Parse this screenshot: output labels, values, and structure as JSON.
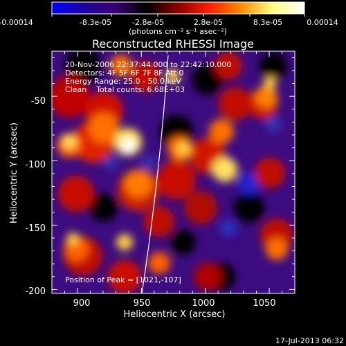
{
  "colorbar": {
    "tick_labels": [
      "-0.00014",
      "-8.3e-05",
      "-2.8e-05",
      "2.8e-05",
      "8.3e-05",
      "0.00014"
    ],
    "unit_label": "(photons cm⁻² s⁻¹ asec⁻²)",
    "colors": [
      "#0000ff",
      "#1e00a0",
      "#3a0070",
      "#000000",
      "#8c0000",
      "#ff2000",
      "#ff8c00",
      "#ffff80",
      "#ffffff"
    ]
  },
  "image": {
    "title": "Reconstructed RHESSI Image",
    "info_lines": [
      "20-Nov-2006 22:37:44.000 to 22:42:10.000",
      "Detectors: 4F 5F 6F 7F 8F  Att 0",
      "Energy Range: 25.0 - 50.0 keV",
      "Clean    Total counts: 6.68E+03"
    ],
    "peak_label": "Position of Peak = [1021,-107]",
    "xlabel": "Heliocentric X (arcsec)",
    "ylabel": "Heliocentric Y (arcsec)",
    "x_ticks": [
      "900",
      "950",
      "1000",
      "1050"
    ],
    "y_ticks": [
      "-50",
      "-100",
      "-150",
      "-200"
    ],
    "x_range": [
      880,
      1070
    ],
    "y_range": [
      -203,
      -15
    ]
  },
  "footer": {
    "timestamp": "17-Jul-2013 06:32"
  }
}
